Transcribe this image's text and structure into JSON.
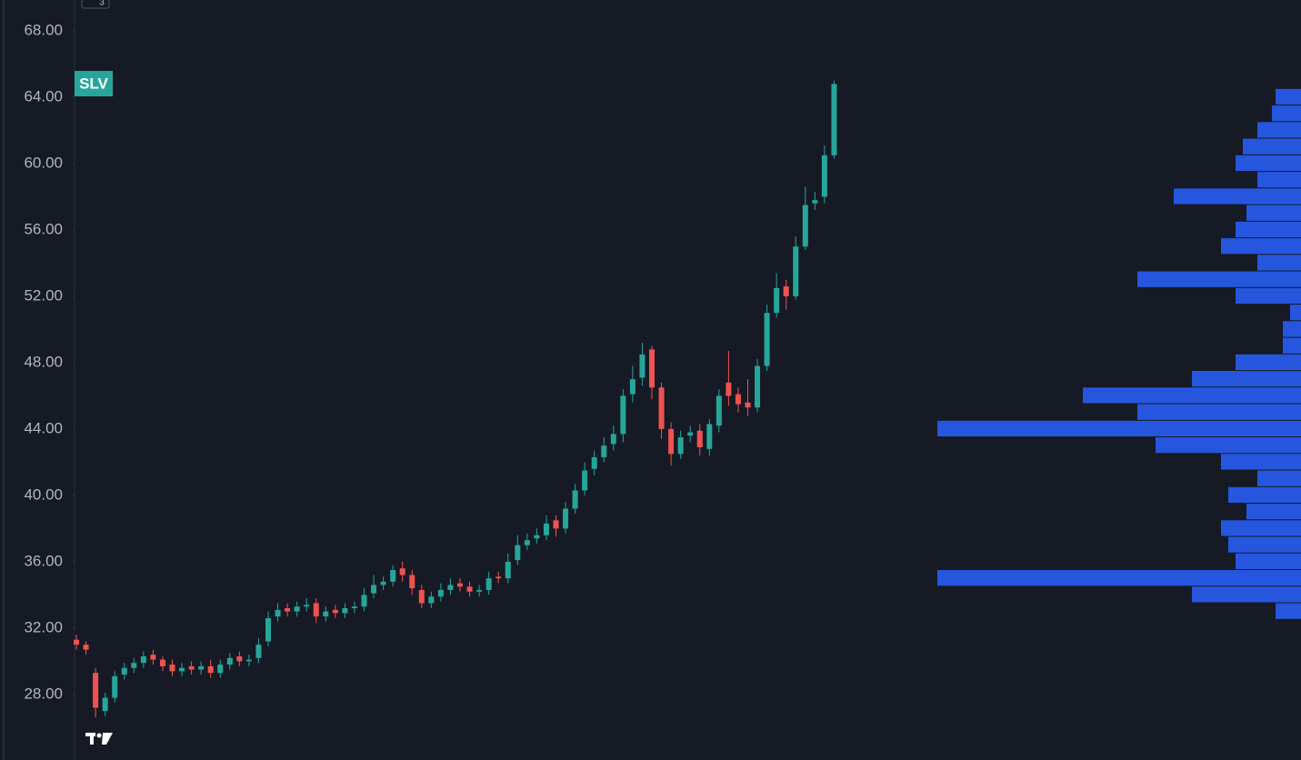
{
  "chart_data": [
    {
      "type": "candlestick",
      "symbol": "SLV",
      "indicator_count": "3",
      "up_color": "#26a69a",
      "down_color": "#ef5350",
      "ylim": [
        24.05,
        69.86
      ],
      "yticks": [
        {
          "value": 28,
          "label": "28.00"
        },
        {
          "value": 32,
          "label": "32.00"
        },
        {
          "value": 36,
          "label": "36.00"
        },
        {
          "value": 40,
          "label": "40.00"
        },
        {
          "value": 44,
          "label": "44.00"
        },
        {
          "value": 48,
          "label": "48.00"
        },
        {
          "value": 52,
          "label": "52.00"
        },
        {
          "value": 56,
          "label": "56.00"
        },
        {
          "value": 60,
          "label": "60.00"
        },
        {
          "value": 64,
          "label": "64.00"
        },
        {
          "value": 68,
          "label": "68.00"
        }
      ],
      "open": [
        31.3,
        31.0,
        29.3,
        27.0,
        27.8,
        29.2,
        29.6,
        29.9,
        30.4,
        30.1,
        29.8,
        29.4,
        29.7,
        29.5,
        29.7,
        29.3,
        29.8,
        30.3,
        30.0,
        30.2,
        31.2,
        32.7,
        33.2,
        33.0,
        33.3,
        33.5,
        32.7,
        33.1,
        32.9,
        33.2,
        33.3,
        34.1,
        34.6,
        34.8,
        35.6,
        35.2,
        34.3,
        33.5,
        33.9,
        34.3,
        34.7,
        34.5,
        34.2,
        34.3,
        35.1,
        35.0,
        36.1,
        37.0,
        37.4,
        37.6,
        38.5,
        38.0,
        39.2,
        40.3,
        41.6,
        42.3,
        43.1,
        43.7,
        46.1,
        47.1,
        48.8,
        46.5,
        44.0,
        42.5,
        43.6,
        43.9,
        42.8,
        44.2,
        46.8,
        46.1,
        45.6,
        45.3,
        47.8,
        51.0,
        52.6,
        52.0,
        55.0,
        57.6,
        58.0,
        60.5
      ],
      "high": [
        31.6,
        31.2,
        29.6,
        28.1,
        29.4,
        29.9,
        30.2,
        30.6,
        30.7,
        30.3,
        30.1,
        29.9,
        30.0,
        30.0,
        30.1,
        30.1,
        30.5,
        30.6,
        30.4,
        31.4,
        33.0,
        33.5,
        33.5,
        33.6,
        33.8,
        33.8,
        33.3,
        33.4,
        33.5,
        33.6,
        34.4,
        35.2,
        35.1,
        35.8,
        36.0,
        35.5,
        34.6,
        34.2,
        34.7,
        35.0,
        35.0,
        34.8,
        34.6,
        35.4,
        35.4,
        36.5,
        37.6,
        37.7,
        38.0,
        38.8,
        38.8,
        39.6,
        40.7,
        42.0,
        42.7,
        43.5,
        44.2,
        46.4,
        47.8,
        49.2,
        49.0,
        46.8,
        44.4,
        43.9,
        44.2,
        44.3,
        44.6,
        46.4,
        48.7,
        46.5,
        47.0,
        48.2,
        51.5,
        53.4,
        53.0,
        55.6,
        58.6,
        58.3,
        61.1,
        65.0
      ],
      "low": [
        30.7,
        30.4,
        26.6,
        26.7,
        27.5,
        28.9,
        29.3,
        29.6,
        29.8,
        29.4,
        29.1,
        29.1,
        29.2,
        29.2,
        29.0,
        29.0,
        29.5,
        29.7,
        29.7,
        29.9,
        30.9,
        32.4,
        32.7,
        32.7,
        33.0,
        32.3,
        32.4,
        32.6,
        32.6,
        32.9,
        33.0,
        33.8,
        34.3,
        34.5,
        34.8,
        34.0,
        33.2,
        33.2,
        33.6,
        34.0,
        34.2,
        33.9,
        33.9,
        34.0,
        34.7,
        34.7,
        35.8,
        36.7,
        37.1,
        37.3,
        37.5,
        37.7,
        38.9,
        40.0,
        41.2,
        42.0,
        42.7,
        43.2,
        45.6,
        46.6,
        45.8,
        43.4,
        41.8,
        42.2,
        43.2,
        42.4,
        42.4,
        43.8,
        45.4,
        45.0,
        44.8,
        45.0,
        47.5,
        50.7,
        51.2,
        51.8,
        54.8,
        57.2,
        57.6,
        60.3
      ],
      "close": [
        31.0,
        30.7,
        27.2,
        27.8,
        29.1,
        29.6,
        29.9,
        30.3,
        30.1,
        29.7,
        29.4,
        29.6,
        29.5,
        29.7,
        29.3,
        29.8,
        30.2,
        30.0,
        30.1,
        31.0,
        32.6,
        33.1,
        33.0,
        33.3,
        33.4,
        32.7,
        33.0,
        32.9,
        33.2,
        33.3,
        34.0,
        34.6,
        34.8,
        35.5,
        35.2,
        34.4,
        33.5,
        33.9,
        34.3,
        34.6,
        34.5,
        34.2,
        34.3,
        35.0,
        35.0,
        36.0,
        37.0,
        37.3,
        37.6,
        38.3,
        38.0,
        39.2,
        40.3,
        41.5,
        42.3,
        43.0,
        43.7,
        46.0,
        47.0,
        48.5,
        46.5,
        44.0,
        42.5,
        43.5,
        43.8,
        42.9,
        44.3,
        46.0,
        46.0,
        45.5,
        45.3,
        47.8,
        51.0,
        52.5,
        52.0,
        55.0,
        57.5,
        57.8,
        60.5,
        64.8
      ]
    },
    {
      "type": "volume_profile",
      "color": "#2962ff",
      "levels": [
        33,
        34,
        35,
        36,
        37,
        38,
        39,
        40,
        41,
        42,
        43,
        44,
        45,
        46,
        47,
        48,
        49,
        50,
        51,
        52,
        53,
        54,
        55,
        56,
        57,
        58,
        59,
        60,
        61,
        62,
        63,
        64
      ],
      "values": [
        7,
        30,
        100,
        18,
        20,
        22,
        15,
        20,
        12,
        22,
        40,
        100,
        45,
        60,
        30,
        18,
        5,
        5,
        3,
        18,
        45,
        12,
        22,
        18,
        15,
        35,
        12,
        18,
        16,
        12,
        8,
        7
      ]
    }
  ]
}
